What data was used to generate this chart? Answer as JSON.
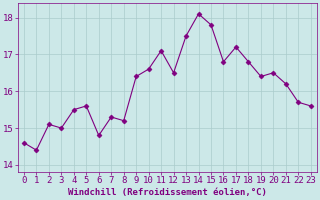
{
  "x": [
    0,
    1,
    2,
    3,
    4,
    5,
    6,
    7,
    8,
    9,
    10,
    11,
    12,
    13,
    14,
    15,
    16,
    17,
    18,
    19,
    20,
    21,
    22,
    23
  ],
  "y": [
    14.6,
    14.4,
    15.1,
    15.0,
    15.5,
    15.6,
    14.8,
    15.3,
    15.2,
    16.4,
    16.6,
    17.1,
    16.5,
    17.5,
    18.1,
    17.8,
    16.8,
    17.2,
    16.8,
    16.4,
    16.5,
    16.2,
    15.7,
    15.6
  ],
  "line_color": "#800080",
  "marker": "D",
  "marker_size": 2.5,
  "bg_color": "#cce8e8",
  "grid_color": "#aacccc",
  "xlabel": "Windchill (Refroidissement éolien,°C)",
  "ylim": [
    13.8,
    18.4
  ],
  "yticks": [
    14,
    15,
    16,
    17,
    18
  ],
  "xlim": [
    -0.5,
    23.5
  ],
  "xticks": [
    0,
    1,
    2,
    3,
    4,
    5,
    6,
    7,
    8,
    9,
    10,
    11,
    12,
    13,
    14,
    15,
    16,
    17,
    18,
    19,
    20,
    21,
    22,
    23
  ],
  "xlabel_fontsize": 6.5,
  "tick_fontsize": 6.5,
  "tick_color": "#800080",
  "label_color": "#800080",
  "spine_color": "#800080"
}
